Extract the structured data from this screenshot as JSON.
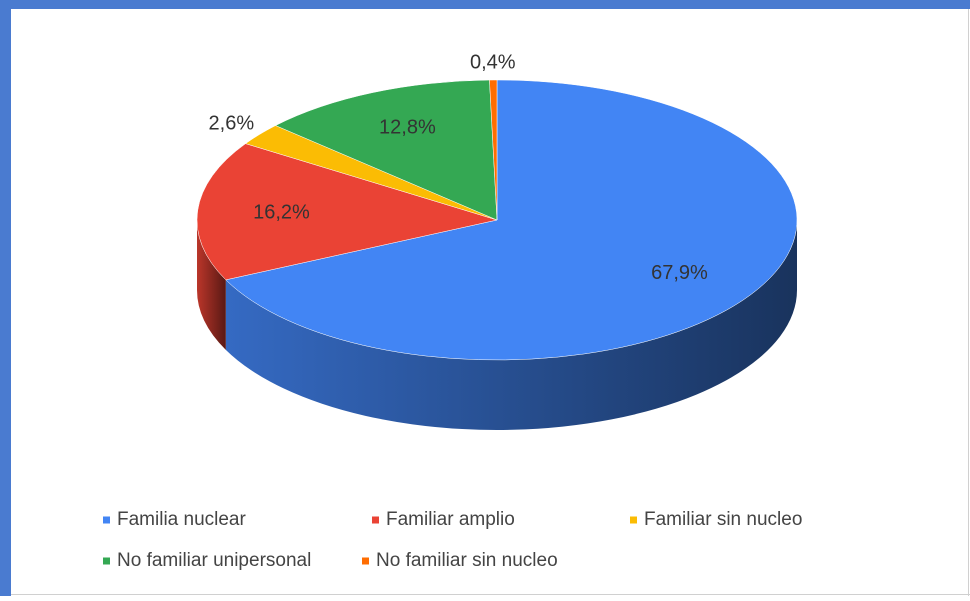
{
  "chart_data": {
    "type": "pie",
    "categories": [
      "Familia nuclear",
      "Familiar amplio",
      "Familiar sin nucleo",
      "No familiar unipersonal",
      "No familiar sin nucleo"
    ],
    "values": [
      67.9,
      16.2,
      2.6,
      12.8,
      0.4
    ],
    "value_labels": [
      "67,9%",
      "16,2%",
      "2,6%",
      "12,8%",
      "0,4%"
    ],
    "colors": [
      "#4285f4",
      "#ea4335",
      "#fbbc04",
      "#34a853",
      "#ff6d01"
    ],
    "legend": "bottom"
  }
}
